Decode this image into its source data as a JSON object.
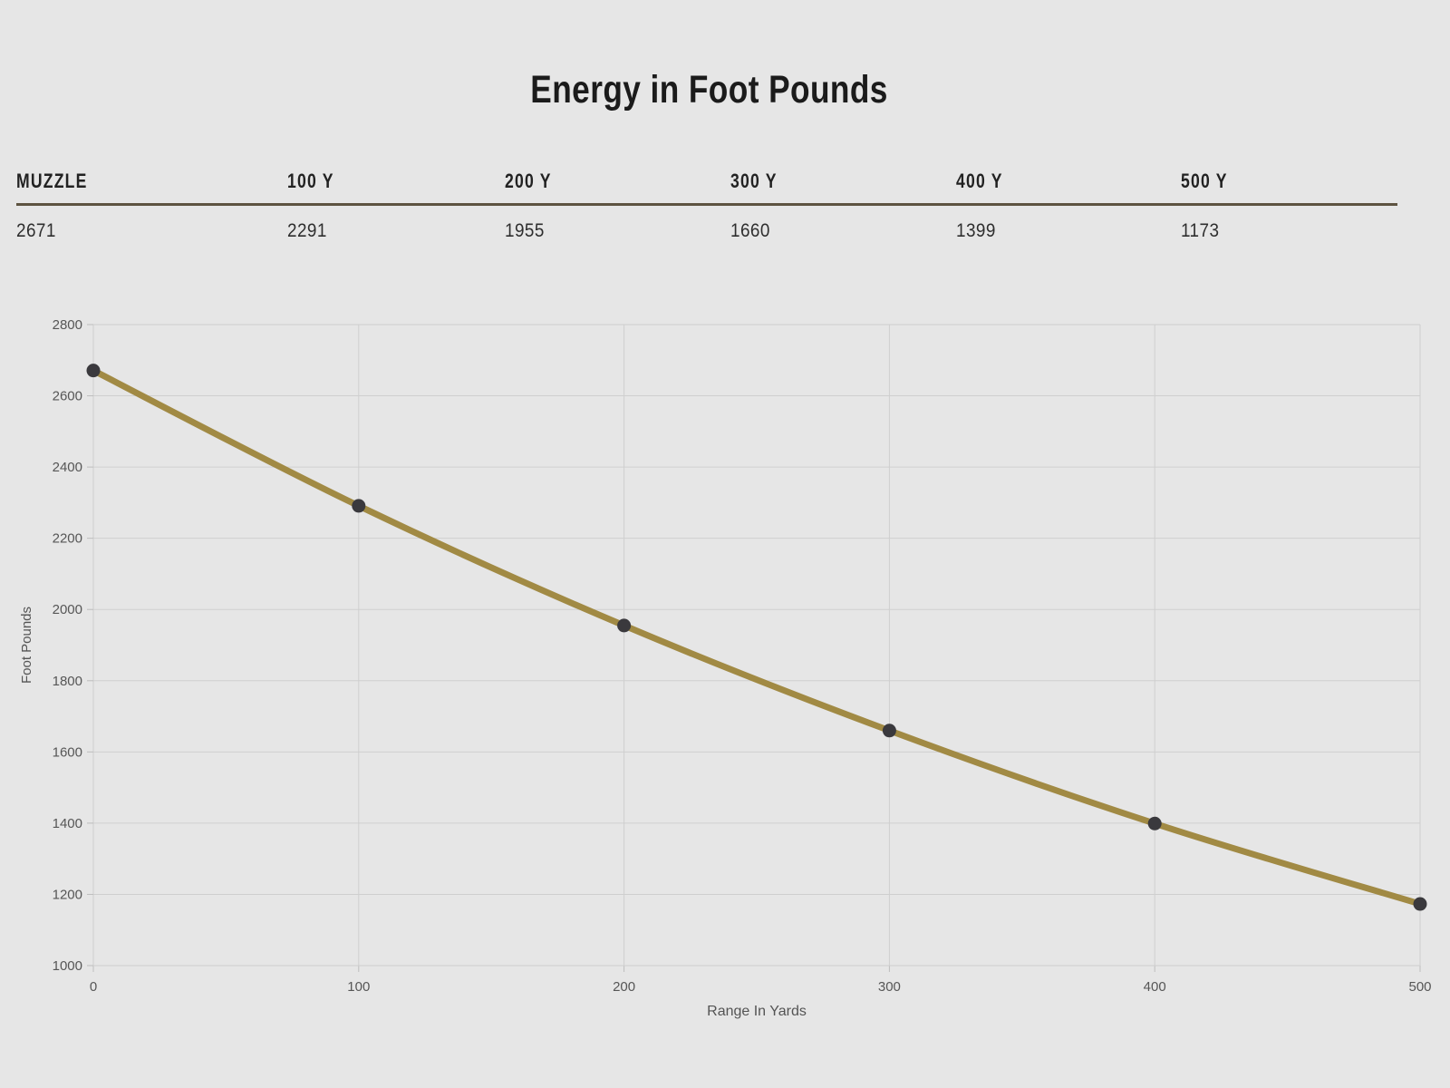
{
  "page": {
    "title": "Energy in Foot Pounds"
  },
  "table": {
    "columns": [
      {
        "label": "MUZZLE",
        "value": "2671"
      },
      {
        "label": "100 Y",
        "value": "2291"
      },
      {
        "label": "200 Y",
        "value": "1955"
      },
      {
        "label": "300 Y",
        "value": "1660"
      },
      {
        "label": "400 Y",
        "value": "1399"
      },
      {
        "label": "500 Y",
        "value": "1173"
      }
    ]
  },
  "chart_data": {
    "type": "line",
    "title": "Energy in Foot Pounds",
    "x": [
      0,
      100,
      200,
      300,
      400,
      500
    ],
    "series": [
      {
        "name": "Energy in Foot Pounds",
        "values": [
          2671,
          2291,
          1955,
          1660,
          1399,
          1173
        ]
      }
    ],
    "xlabel": "Range In Yards",
    "ylabel": "Foot Pounds",
    "xlim": [
      0,
      500
    ],
    "ylim": [
      1000,
      2800
    ],
    "x_tick_step": 100,
    "y_tick_step": 200,
    "grid": true,
    "legend": "none",
    "colors": {
      "line": "#a18a44",
      "point": "#3a393d",
      "grid_line": "#cfcfcf",
      "tick_mark": "#bdbdbd",
      "tick_text": "#565656",
      "axis_title_text": "#545454",
      "background": "#e6e6e6",
      "table_rule": "#5d5340"
    }
  }
}
